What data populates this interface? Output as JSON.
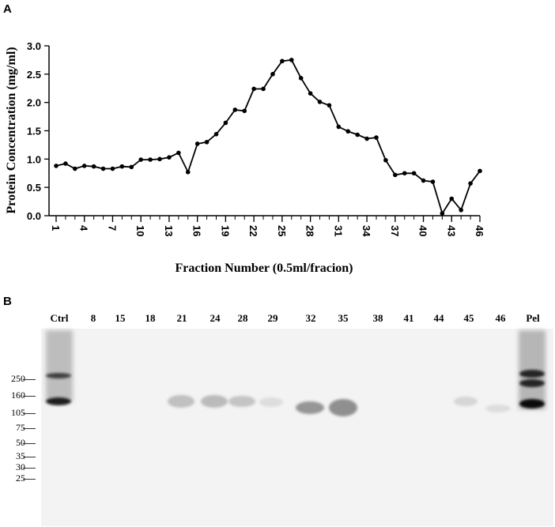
{
  "panels": {
    "a": "A",
    "b": "B"
  },
  "chart_data": {
    "type": "line",
    "ylabel": "Protein  Concentration (mg/ml)",
    "xlabel": "Fraction Number (0.5ml/fracion)",
    "ylim": [
      0,
      3.0
    ],
    "xlim": [
      1,
      46
    ],
    "x_ticks": [
      1,
      4,
      7,
      10,
      13,
      16,
      19,
      22,
      25,
      28,
      31,
      34,
      37,
      40,
      43,
      46
    ],
    "y_ticks": [
      "0.0",
      "0.5",
      "1.0",
      "1.5",
      "2.0",
      "2.5",
      "3.0"
    ],
    "series": [
      {
        "x": [
          1,
          2,
          3,
          4,
          5,
          6,
          7,
          8,
          9,
          10,
          11,
          12,
          13,
          14,
          15,
          16,
          17,
          18,
          19,
          20,
          21,
          22,
          23,
          24,
          25,
          26,
          27,
          28,
          29,
          30,
          31,
          32,
          33,
          34,
          35,
          36,
          37,
          38,
          39,
          40,
          41,
          42,
          43,
          44,
          45,
          46
        ],
        "values": [
          0.88,
          0.92,
          0.83,
          0.88,
          0.87,
          0.83,
          0.83,
          0.87,
          0.86,
          0.99,
          0.99,
          1.0,
          1.03,
          1.11,
          0.77,
          1.27,
          1.3,
          1.44,
          1.64,
          1.87,
          1.85,
          2.24,
          2.24,
          2.5,
          2.73,
          2.75,
          2.43,
          2.16,
          2.01,
          1.95,
          1.57,
          1.49,
          1.43,
          1.36,
          1.38,
          0.98,
          0.72,
          0.75,
          0.75,
          0.62,
          0.6,
          0.04,
          0.3,
          0.1,
          0.57,
          0.79
        ]
      }
    ]
  },
  "blot": {
    "lanes": [
      "Ctrl",
      "8",
      "15",
      "18",
      "21",
      "24",
      "28",
      "29",
      "32",
      "35",
      "38",
      "41",
      "44",
      "45",
      "46",
      "Pel"
    ],
    "markers": [
      "250",
      "160",
      "105",
      "75",
      "50",
      "35",
      "30",
      "25"
    ]
  }
}
